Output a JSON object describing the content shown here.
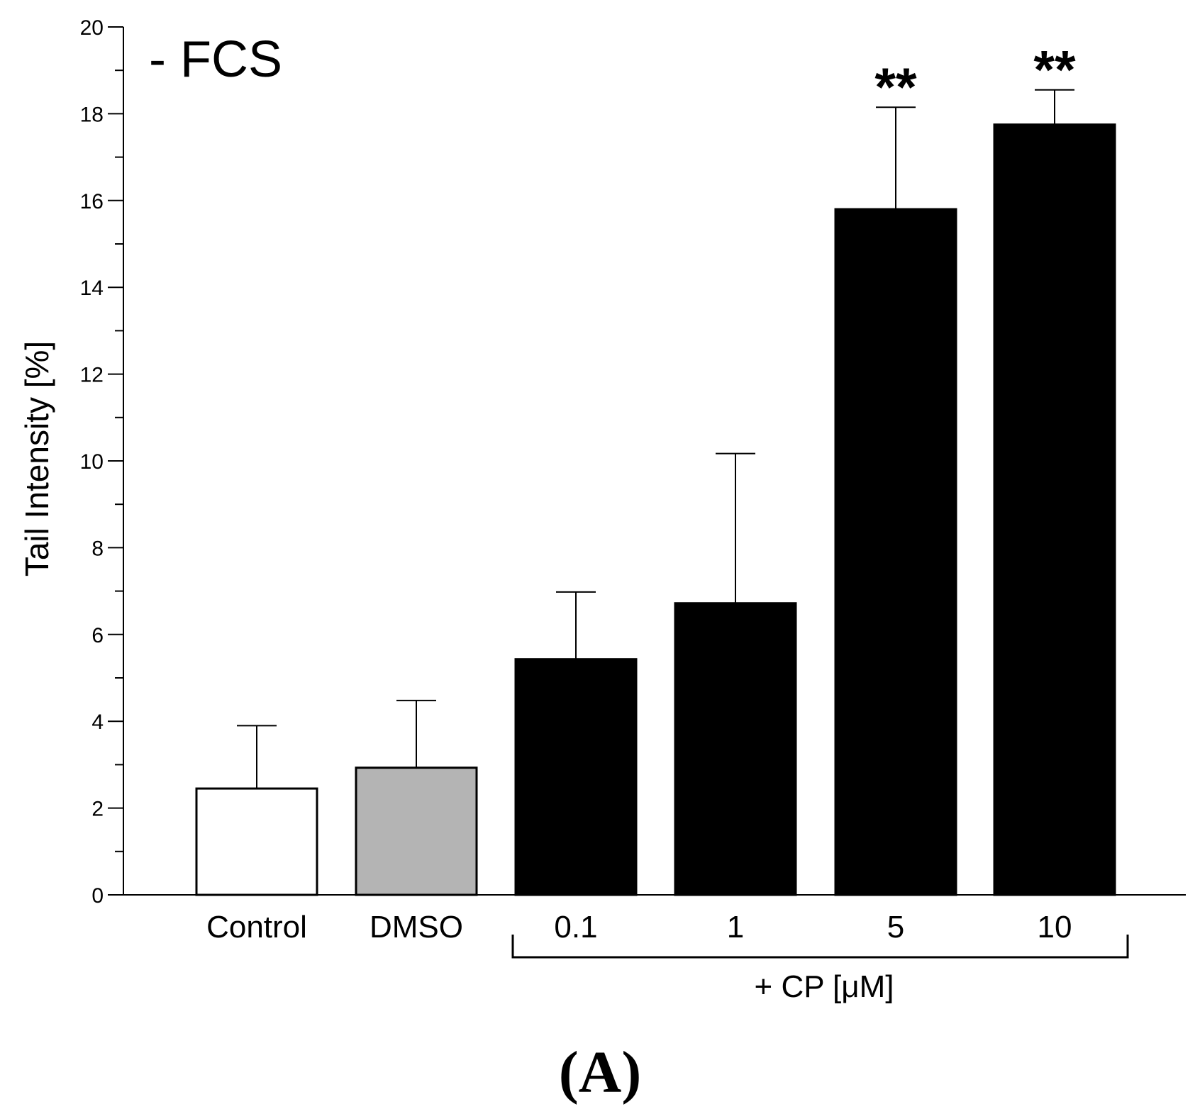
{
  "chart_data": {
    "type": "bar",
    "title": "- FCS",
    "xlabel": "",
    "ylabel": "Tail Intensity [%]",
    "ylim": [
      0,
      20
    ],
    "y_major_ticks": [
      0,
      2,
      4,
      6,
      8,
      10,
      12,
      14,
      16,
      18,
      20
    ],
    "y_tick_labels": [
      "0",
      "2",
      "4",
      "6",
      "8",
      "10",
      "12",
      "14",
      "16",
      "18",
      "20"
    ],
    "y_minor_step": 1,
    "grid": false,
    "categories": [
      "Control",
      "DMSO",
      "0.1",
      "1",
      "5",
      "10"
    ],
    "values": [
      2.45,
      2.93,
      5.43,
      6.72,
      15.8,
      17.75
    ],
    "errors": [
      1.45,
      1.55,
      1.55,
      3.45,
      2.35,
      0.8
    ],
    "colors": [
      "#ffffff",
      "#b4b4b4",
      "#000000",
      "#000000",
      "#000000",
      "#000000"
    ],
    "significance": [
      "",
      "",
      "",
      "",
      "**",
      "**"
    ],
    "group_annotation": {
      "label": "+ CP [μM]",
      "categories": [
        "0.1",
        "1",
        "5",
        "10"
      ]
    },
    "panel_label": "(A)"
  }
}
